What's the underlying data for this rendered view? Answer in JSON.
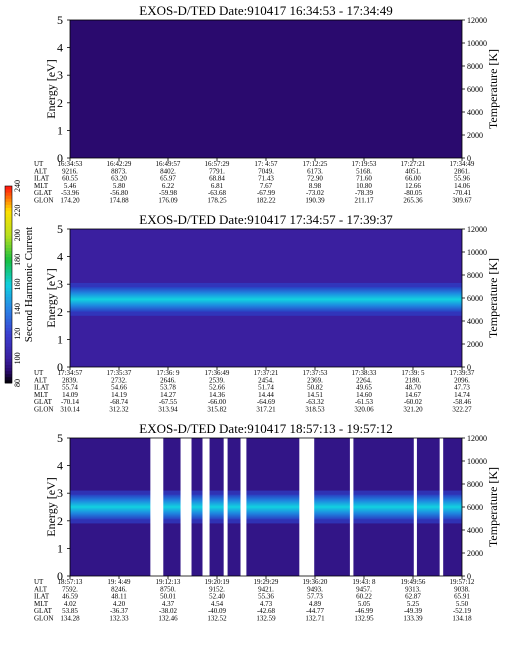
{
  "chart_data": [
    {
      "type": "heatmap",
      "title": "EXOS-D/TED   Date:910417   16:34:53 - 17:34:49",
      "ylabel": "Energy [eV]",
      "y2label": "Temperature [K]",
      "ylim": [
        0,
        5
      ],
      "y2lim": [
        0,
        12000
      ],
      "yticks": [
        "0",
        "1",
        "2",
        "3",
        "4",
        "5"
      ],
      "y2ticks": [
        "0",
        "2000",
        "4000",
        "6000",
        "8000",
        "10000",
        "12000"
      ],
      "band": {
        "center_ev": 0,
        "width_ev": 0,
        "level": 0
      },
      "background_level": 90,
      "gaps": [],
      "ephemeris": {
        "labels": [
          "UT",
          "ALT",
          "ILAT",
          "MLT",
          "GLAT",
          "GLON"
        ],
        "columns": [
          [
            "16:34:53",
            "9216.",
            "60.55",
            "5.46",
            "-53.96",
            "174.20"
          ],
          [
            "16:42:29",
            "8873.",
            "63.20",
            "5.80",
            "-56.80",
            "174.88"
          ],
          [
            "16:49:57",
            "8402.",
            "65.97",
            "6.22",
            "-59.98",
            "176.09"
          ],
          [
            "16:57:29",
            "7791.",
            "68.84",
            "6.81",
            "-63.68",
            "178.25"
          ],
          [
            "17: 4:57",
            "7049.",
            "71.43",
            "7.67",
            "-67.99",
            "182.22"
          ],
          [
            "17:12:25",
            "6173.",
            "72.90",
            "8.98",
            "-73.02",
            "190.39"
          ],
          [
            "17:19:53",
            "5168.",
            "71.60",
            "10.80",
            "-78.39",
            "211.17"
          ],
          [
            "17:27:21",
            "4051.",
            "66.00",
            "12.66",
            "-80.05",
            "265.36"
          ],
          [
            "17:34:49",
            "2861.",
            "55.96",
            "14.06",
            "-70.41",
            "309.67"
          ]
        ]
      }
    },
    {
      "type": "heatmap",
      "title": "EXOS-D/TED   Date:910417   17:34:57 - 17:39:37",
      "ylabel": "Energy [eV]",
      "y2label": "Temperature [K]",
      "ylim": [
        0,
        5
      ],
      "y2lim": [
        0,
        12000
      ],
      "yticks": [
        "0",
        "1",
        "2",
        "3",
        "4",
        "5"
      ],
      "y2ticks": [
        "0",
        "2000",
        "4000",
        "6000",
        "8000",
        "10000",
        "12000"
      ],
      "band": {
        "center_ev": 2.45,
        "width_ev": 0.9,
        "level": 165
      },
      "background_level": 100,
      "gaps": [],
      "colorbar": {
        "label": "Second Harmonic Current",
        "min": 80,
        "max": 240,
        "ticks": [
          "80",
          "100",
          "120",
          "140",
          "160",
          "180",
          "200",
          "220",
          "240"
        ]
      },
      "ephemeris": {
        "labels": [
          "UT",
          "ALT",
          "ILAT",
          "MLT",
          "GLAT",
          "GLON"
        ],
        "columns": [
          [
            "17:34:57",
            "2839.",
            "55.74",
            "14.09",
            "-70.14",
            "310.14"
          ],
          [
            "17:35:37",
            "2732.",
            "54.66",
            "14.19",
            "-68.74",
            "312.32"
          ],
          [
            "17:36: 9",
            "2646.",
            "53.78",
            "14.27",
            "-67.55",
            "313.94"
          ],
          [
            "17:36:49",
            "2539.",
            "52.66",
            "14.36",
            "-66.00",
            "315.82"
          ],
          [
            "17:37:21",
            "2454.",
            "51.74",
            "14.44",
            "-64.69",
            "317.21"
          ],
          [
            "17:37:53",
            "2369.",
            "50.82",
            "14.51",
            "-63.32",
            "318.53"
          ],
          [
            "17:38:33",
            "2264.",
            "49.65",
            "14.60",
            "-61.53",
            "320.06"
          ],
          [
            "17:39: 5",
            "2180.",
            "48.70",
            "14.67",
            "-60.02",
            "321.20"
          ],
          [
            "17:39:37",
            "2096.",
            "47.73",
            "14.74",
            "-58.46",
            "322.27"
          ]
        ]
      }
    },
    {
      "type": "heatmap",
      "title": "EXOS-D/TED   Date:910417   18:57:13 - 19:57:12",
      "ylabel": "Energy [eV]",
      "y2label": "Temperature [K]",
      "ylim": [
        0,
        5
      ],
      "y2lim": [
        0,
        12000
      ],
      "yticks": [
        "0",
        "1",
        "2",
        "3",
        "4",
        "5"
      ],
      "y2ticks": [
        "0",
        "2000",
        "4000",
        "6000",
        "8000",
        "10000",
        "12000"
      ],
      "band": {
        "center_ev": 2.5,
        "width_ev": 0.9,
        "level": 170
      },
      "background_level": 95,
      "gaps": [
        [
          0.205,
          0.238
        ],
        [
          0.282,
          0.31
        ],
        [
          0.338,
          0.356
        ],
        [
          0.392,
          0.402
        ],
        [
          0.435,
          0.45
        ],
        [
          0.585,
          0.623
        ],
        [
          0.714,
          0.723
        ],
        [
          0.877,
          0.885
        ],
        [
          0.943,
          0.952
        ]
      ],
      "ephemeris": {
        "labels": [
          "UT",
          "ALT",
          "ILAT",
          "MLT",
          "GLAT",
          "GLON"
        ],
        "columns": [
          [
            "18:57:13",
            "7592.",
            "46.59",
            "4.02",
            "53.85",
            "134.28"
          ],
          [
            "19: 4:49",
            "8246.",
            "48.11",
            "4.20",
            "-36.37",
            "132.33"
          ],
          [
            "19:12:13",
            "8750.",
            "50.01",
            "4.37",
            "-38.02",
            "132.46"
          ],
          [
            "19:20:19",
            "9152.",
            "52.40",
            "4.54",
            "-40.09",
            "132.52"
          ],
          [
            "19:29:29",
            "9421.",
            "55.36",
            "4.73",
            "-42.68",
            "132.59"
          ],
          [
            "19:36:20",
            "9493.",
            "57.73",
            "4.89",
            "-44.77",
            "132.71"
          ],
          [
            "19:43: 8",
            "9457.",
            "60.22",
            "5.05",
            "-46.99",
            "132.95"
          ],
          [
            "19:49:56",
            "9313.",
            "62.87",
            "5.25",
            "-49.39",
            "133.39"
          ],
          [
            "19:57:12",
            "9038.",
            "65.91",
            "5.50",
            "-52.19",
            "134.18"
          ]
        ]
      }
    }
  ]
}
